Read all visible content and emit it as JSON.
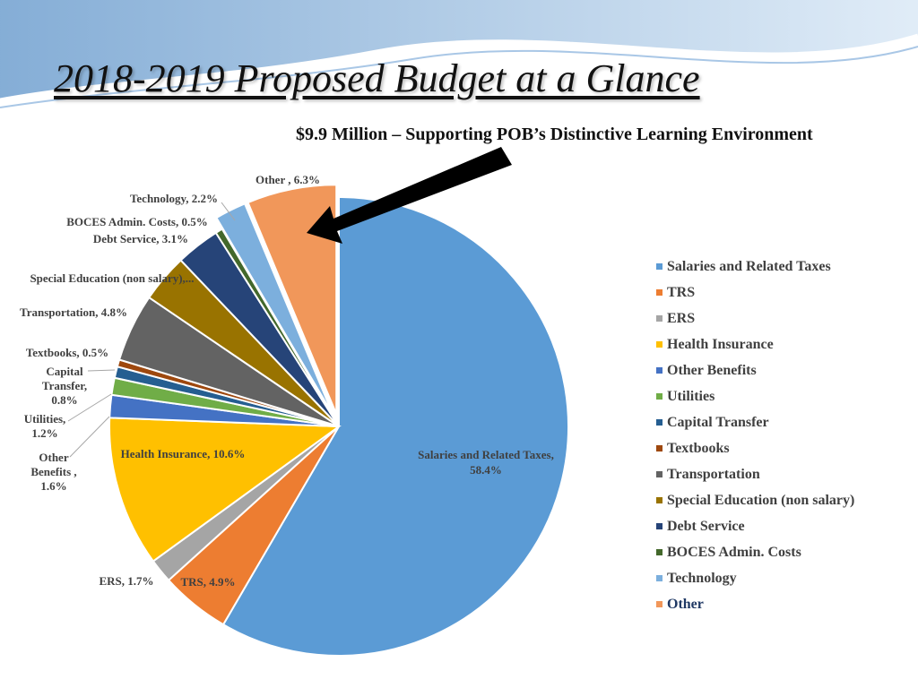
{
  "slide": {
    "title": "2018-2019 Proposed Budget at a Glance",
    "subtitle": "$9.9 Million – Supporting POB’s Distinctive Learning Environment"
  },
  "chart_data": {
    "type": "pie",
    "unit": "%",
    "exploded_slices": [
      "Technology",
      "Other"
    ],
    "annotation": "arrow pointing to Other slice",
    "legend_position": "right",
    "slices": [
      {
        "name": "Salaries and Related Taxes",
        "value": 58.4,
        "label": [
          "Salaries and Related Taxes,",
          "58.4%"
        ],
        "color": "#5b9bd5"
      },
      {
        "name": "TRS",
        "value": 4.9,
        "label": [
          "TRS, 4.9%"
        ],
        "color": "#ed7d31"
      },
      {
        "name": "ERS",
        "value": 1.7,
        "label": [
          "ERS, 1.7%"
        ],
        "color": "#a5a5a5"
      },
      {
        "name": "Health Insurance",
        "value": 10.6,
        "label": [
          "Health Insurance, 10.6%"
        ],
        "color": "#ffc000"
      },
      {
        "name": "Other Benefits",
        "value": 1.6,
        "label": [
          "Other",
          "Benefits ,",
          "1.6%"
        ],
        "color": "#4472c4"
      },
      {
        "name": "Utilities",
        "value": 1.2,
        "label": [
          "Utilities,",
          "1.2%"
        ],
        "color": "#70ad47"
      },
      {
        "name": "Capital Transfer",
        "value": 0.8,
        "label": [
          "Capital",
          "Transfer,",
          "0.8%"
        ],
        "color": "#255e91"
      },
      {
        "name": "Textbooks",
        "value": 0.5,
        "label": [
          "Textbooks, 0.5%"
        ],
        "color": "#9e480e"
      },
      {
        "name": "Transportation",
        "value": 4.8,
        "label": [
          "Transportation, 4.8%"
        ],
        "color": "#636363"
      },
      {
        "name": "Special Education (non salary)",
        "value": 3.4,
        "label": [
          "Special Education (non salary),..."
        ],
        "color": "#997300"
      },
      {
        "name": "Debt Service",
        "value": 3.1,
        "label": [
          "Debt Service, 3.1%"
        ],
        "color": "#264478"
      },
      {
        "name": "BOCES Admin. Costs",
        "value": 0.5,
        "label": [
          "BOCES Admin. Costs, 0.5%"
        ],
        "color": "#43682b"
      },
      {
        "name": "Technology",
        "value": 2.2,
        "label": [
          "Technology, 2.2%"
        ],
        "color": "#7cafdd"
      },
      {
        "name": "Other",
        "value": 6.3,
        "label": [
          "Other , 6.3%"
        ],
        "color": "#f1975a"
      }
    ]
  }
}
